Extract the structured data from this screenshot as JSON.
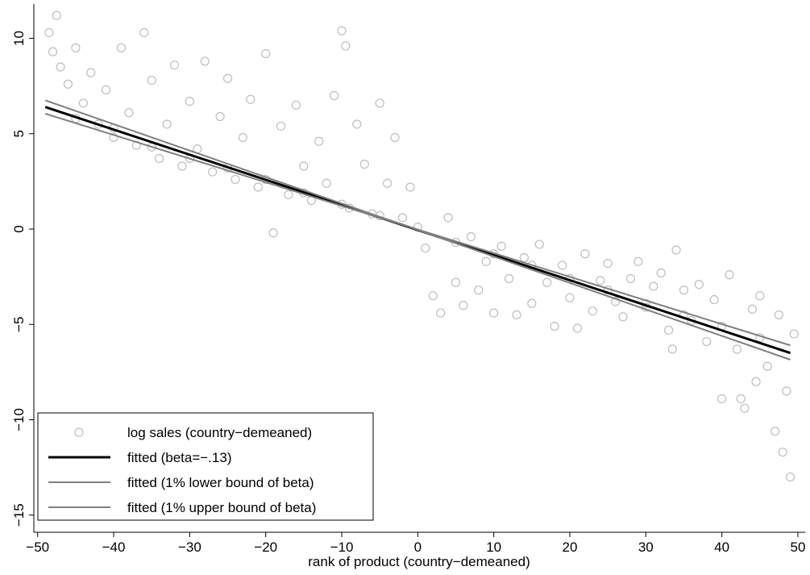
{
  "chart_data": {
    "type": "scatter",
    "x_label": "rank of product (country−demeaned)",
    "xlim": [
      -50.5,
      51
    ],
    "ylim": [
      -15.9,
      11.8
    ],
    "xticks": [
      {
        "value": -50,
        "label": "−50"
      },
      {
        "value": -40,
        "label": "−40"
      },
      {
        "value": -30,
        "label": "−30"
      },
      {
        "value": -20,
        "label": "−20"
      },
      {
        "value": -10,
        "label": "−10"
      },
      0,
      10,
      20,
      30,
      40,
      50
    ],
    "yticks": [
      {
        "value": -15,
        "label": "−15"
      },
      {
        "value": -10,
        "label": "−10"
      },
      {
        "value": -5,
        "label": "−5"
      },
      0,
      5,
      10
    ],
    "legend": "bottom-left",
    "series": [
      {
        "name": "log sales (country−demeaned)",
        "type": "scatter",
        "color": "#bdbdbd",
        "x": [
          -48.5,
          -48,
          -47.5,
          -47,
          -46,
          -45,
          -44,
          -43,
          -42,
          -41,
          -40,
          -39,
          -38,
          -37,
          -36,
          -35,
          -34,
          -33,
          -32,
          -31,
          -30,
          -29,
          -28,
          -27,
          -26,
          -25,
          -24,
          -23,
          -22,
          -21,
          -20,
          -19,
          -18,
          -17,
          -16,
          -15,
          -14,
          -13,
          -12,
          -11,
          -10,
          -9.5,
          -9,
          -8,
          -7,
          -6,
          -5,
          -4,
          -3,
          -2,
          -1,
          0,
          1,
          2,
          3,
          4,
          5,
          6,
          7,
          8,
          9,
          10,
          11,
          12,
          13,
          14,
          15,
          16,
          17,
          18,
          19,
          20,
          21,
          22,
          23,
          24,
          25,
          26,
          27,
          28,
          29,
          30,
          31,
          32,
          33,
          33.5,
          34,
          35,
          36,
          37,
          38,
          39,
          40,
          41,
          42,
          42.5,
          43,
          44,
          44.5,
          45,
          46,
          47,
          47.5,
          48,
          48.5,
          49,
          49.5,
          -45,
          -40,
          -35,
          -30,
          -25,
          -20,
          -15,
          -10,
          -5,
          5,
          10,
          15,
          20,
          25,
          30,
          35,
          40,
          45
        ],
        "values": [
          10.3,
          9.3,
          11.2,
          8.5,
          7.6,
          9.5,
          6.6,
          8.2,
          5.5,
          7.3,
          4.8,
          9.5,
          6.1,
          4.4,
          10.3,
          7.8,
          3.7,
          5.5,
          8.6,
          3.3,
          6.7,
          4.2,
          8.8,
          3.0,
          5.9,
          7.9,
          2.6,
          4.8,
          6.8,
          2.2,
          9.2,
          -0.2,
          5.4,
          1.8,
          6.5,
          3.3,
          1.5,
          4.6,
          2.4,
          7.0,
          10.4,
          9.6,
          1.1,
          5.5,
          3.4,
          0.8,
          6.6,
          2.4,
          4.8,
          0.6,
          2.2,
          0.1,
          -1.0,
          -3.5,
          -4.4,
          0.6,
          -2.8,
          -4.0,
          -0.4,
          -3.2,
          -1.7,
          -4.4,
          -0.9,
          -2.6,
          -4.5,
          -1.5,
          -3.9,
          -0.8,
          -2.8,
          -5.1,
          -1.9,
          -3.6,
          -5.2,
          -1.3,
          -4.3,
          -2.7,
          -1.8,
          -3.8,
          -4.6,
          -2.6,
          -1.7,
          -4.1,
          -3.0,
          -2.3,
          -5.3,
          -6.3,
          -1.1,
          -3.2,
          -4.8,
          -2.9,
          -5.9,
          -3.7,
          -8.9,
          -2.4,
          -6.3,
          -8.9,
          -9.4,
          -4.2,
          -8.0,
          -3.5,
          -7.2,
          -10.6,
          -4.5,
          -11.7,
          -8.5,
          -13.0,
          -5.5,
          5.8,
          5.3,
          4.3,
          3.7,
          3.2,
          2.6,
          1.9,
          1.3,
          0.7,
          -0.7,
          -1.3,
          -1.9,
          -2.6,
          -3.2,
          -3.9,
          -4.5,
          -5.1,
          -5.7
        ]
      },
      {
        "name": "fitted (beta=−.13)",
        "type": "line",
        "color": "#000000",
        "x": [
          -49,
          49
        ],
        "values": [
          6.4,
          -6.5
        ]
      },
      {
        "name": "fitted (1% lower bound of beta)",
        "type": "line",
        "color": "#7f7f7f",
        "x": [
          -49,
          49
        ],
        "values": [
          6.75,
          -6.85
        ]
      },
      {
        "name": "fitted (1% upper bound of beta)",
        "type": "line",
        "color": "#7f7f7f",
        "x": [
          -49,
          49
        ],
        "values": [
          6.05,
          -6.1
        ]
      }
    ]
  }
}
